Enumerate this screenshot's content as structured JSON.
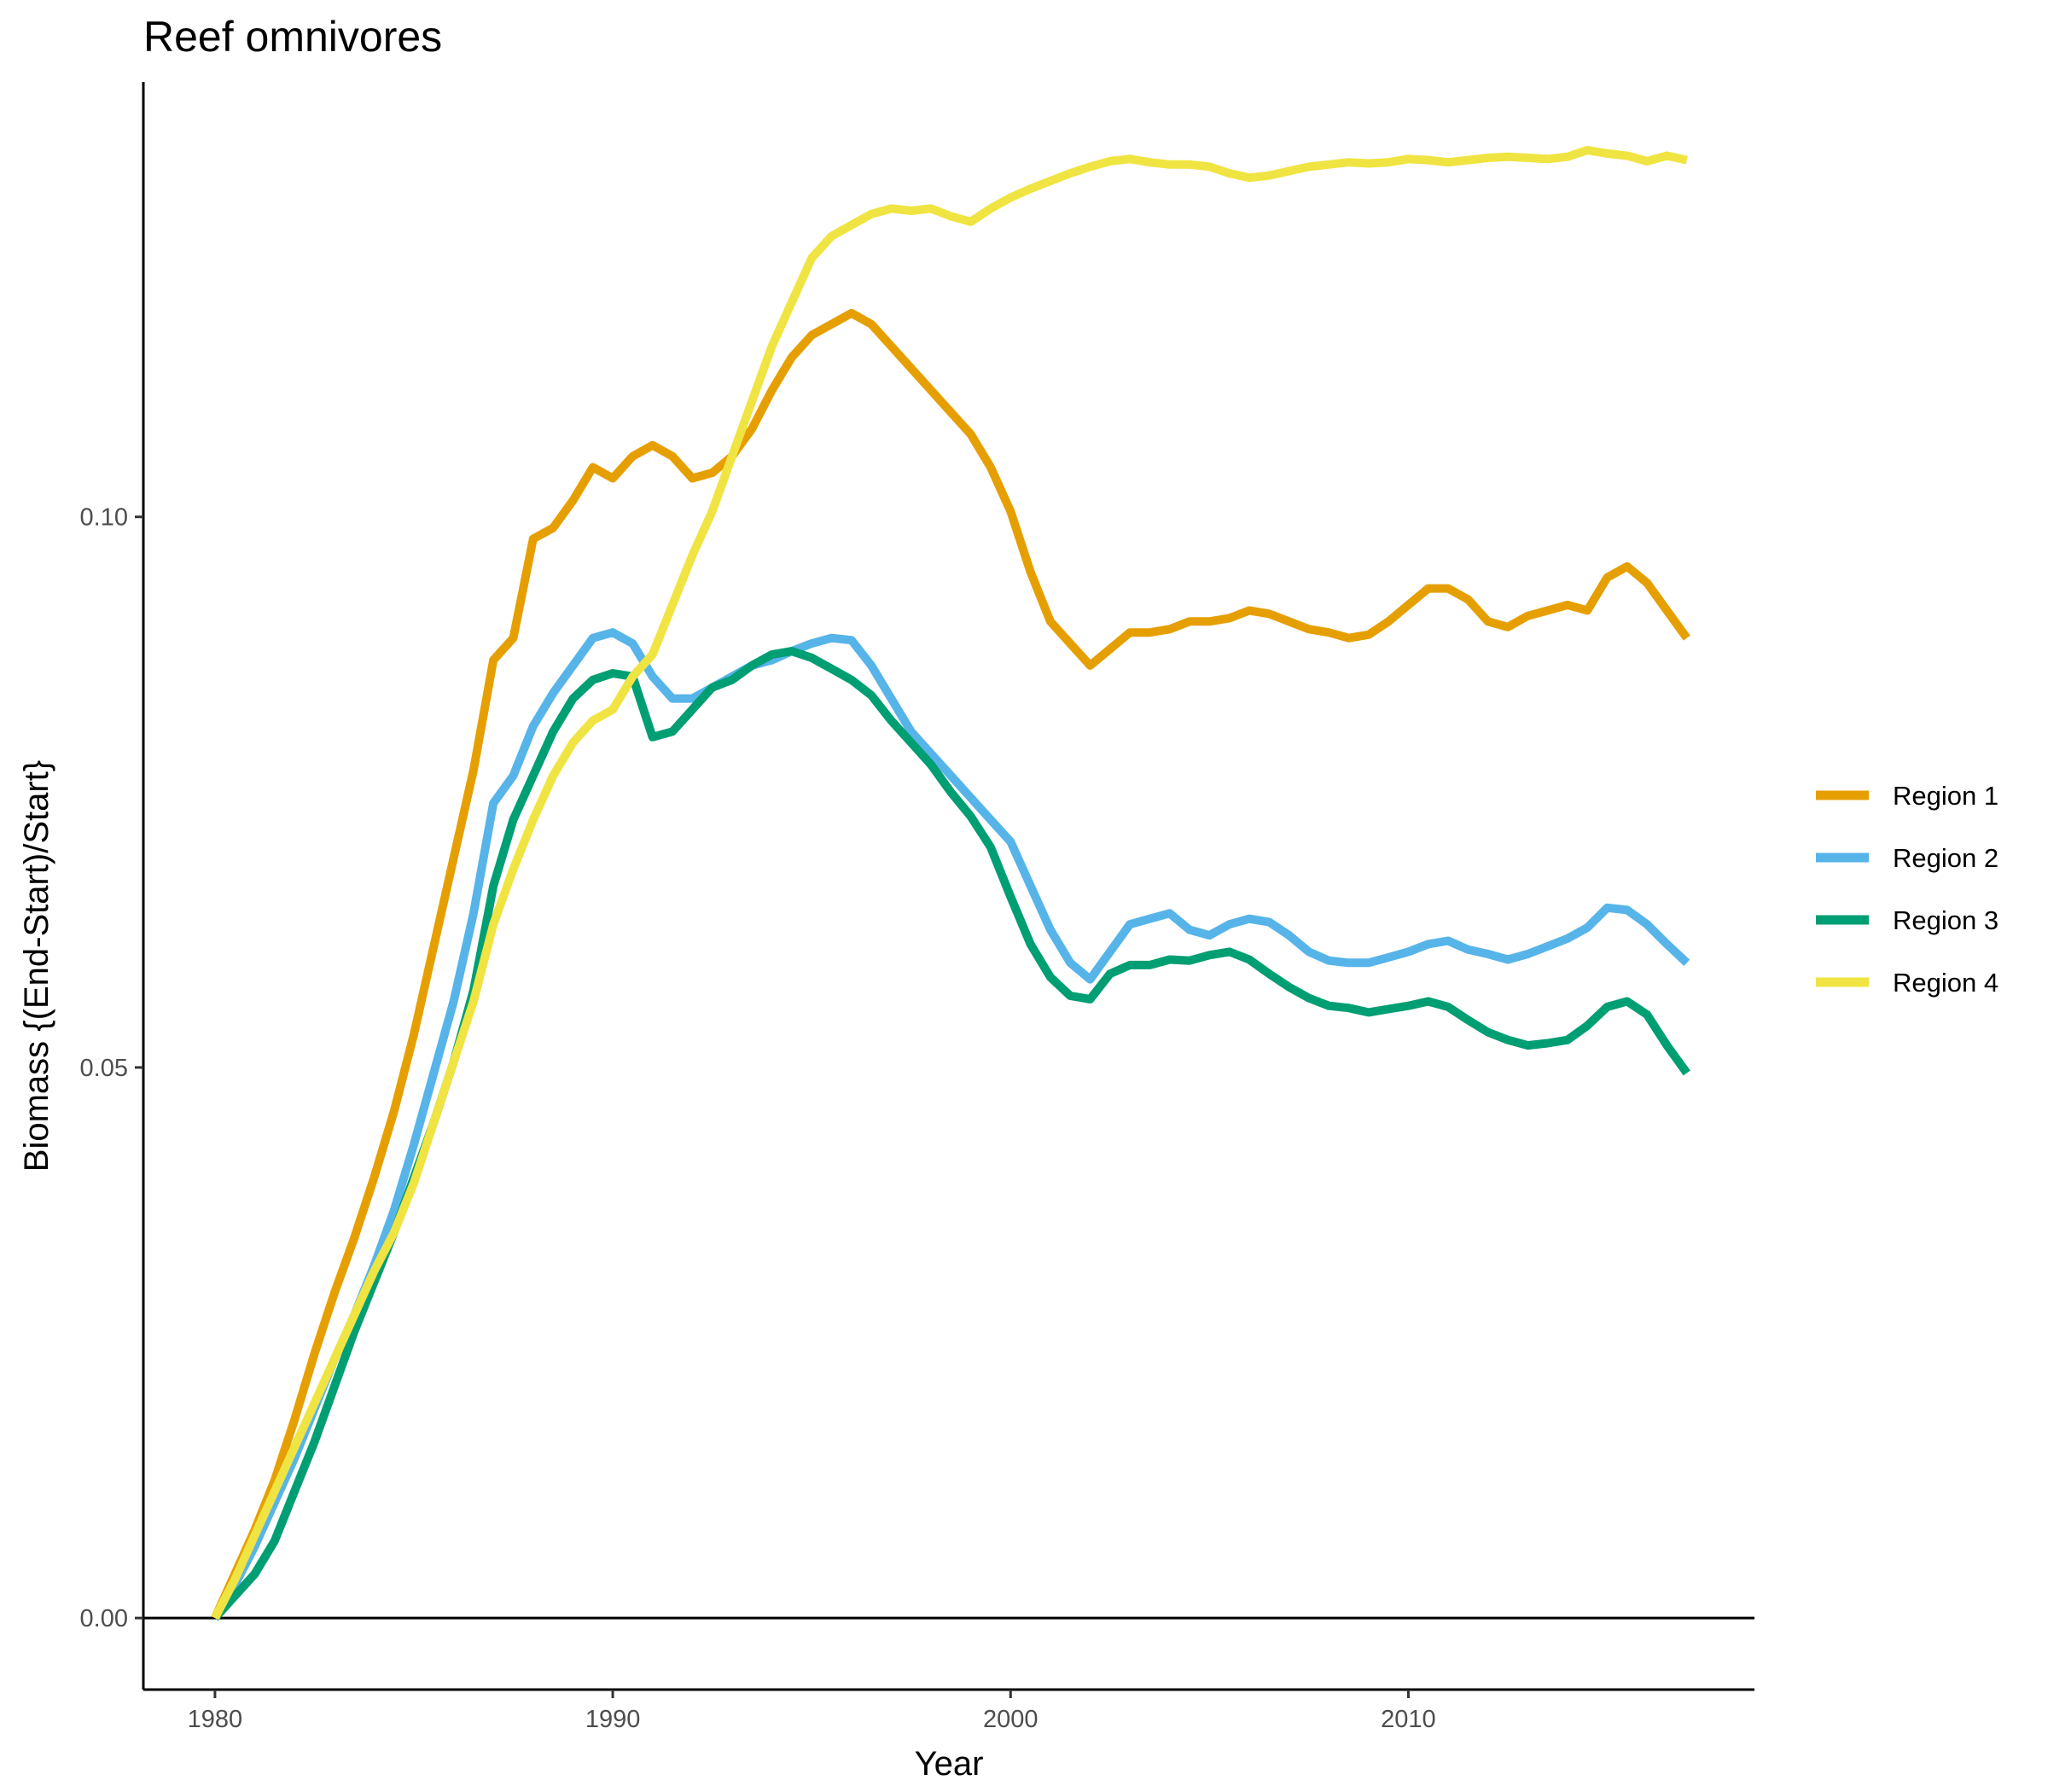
{
  "chart_data": {
    "type": "line",
    "title": "Reef omnivores",
    "xlabel": "Year",
    "ylabel": "Biomass {(End-Start)/Start}",
    "xlim": [
      1978.2,
      2018.7
    ],
    "ylim": [
      -0.0065,
      0.1395
    ],
    "x_ticks": [
      1980,
      1990,
      2000,
      2010
    ],
    "x_tick_labels": [
      "1980",
      "1990",
      "2000",
      "2010"
    ],
    "y_ticks": [
      0.0,
      0.05,
      0.1
    ],
    "y_tick_labels": [
      "0.00",
      "0.05",
      "0.10"
    ],
    "zero_line": true,
    "grid": false,
    "legend_position": "right",
    "series": [
      {
        "name": "Region 1",
        "color": "#E69F00",
        "x": [
          1980,
          1980.5,
          1981,
          1981.5,
          1982,
          1982.5,
          1983,
          1983.5,
          1984,
          1984.5,
          1985,
          1985.5,
          1986,
          1986.5,
          1987,
          1987.5,
          1988,
          1988.5,
          1989,
          1989.5,
          1990,
          1990.5,
          1991,
          1991.5,
          1992,
          1992.5,
          1993,
          1993.5,
          1994,
          1994.5,
          1995,
          1995.5,
          1996,
          1996.5,
          1997,
          1997.5,
          1998,
          1998.5,
          1999,
          1999.5,
          2000,
          2000.5,
          2001,
          2001.5,
          2002,
          2002.5,
          2003,
          2003.5,
          2004,
          2004.5,
          2005,
          2005.5,
          2006,
          2006.5,
          2007,
          2007.5,
          2008,
          2008.5,
          2009,
          2009.5,
          2010,
          2010.5,
          2011,
          2011.5,
          2012,
          2012.5,
          2013,
          2013.5,
          2014,
          2014.5,
          2015,
          2015.5,
          2016,
          2016.5,
          2017
        ],
        "y": [
          0.0,
          0.004,
          0.008,
          0.0125,
          0.018,
          0.024,
          0.0295,
          0.0345,
          0.04,
          0.046,
          0.053,
          0.061,
          0.069,
          0.077,
          0.087,
          0.089,
          0.098,
          0.099,
          0.1015,
          0.1045,
          0.1035,
          0.1055,
          0.1065,
          0.1055,
          0.1035,
          0.104,
          0.1055,
          0.108,
          0.1115,
          0.1145,
          0.1165,
          0.1175,
          0.1185,
          0.1175,
          0.1155,
          0.1135,
          0.1115,
          0.1095,
          0.1075,
          0.1045,
          0.1005,
          0.095,
          0.0905,
          0.0885,
          0.0865,
          0.088,
          0.0895,
          0.0895,
          0.0898,
          0.0905,
          0.0905,
          0.0908,
          0.0915,
          0.0912,
          0.0905,
          0.0898,
          0.0895,
          0.089,
          0.0893,
          0.0905,
          0.092,
          0.0935,
          0.0935,
          0.0925,
          0.0905,
          0.09,
          0.091,
          0.0915,
          0.092,
          0.0915,
          0.0945,
          0.0955,
          0.094,
          0.0915,
          0.089
        ]
      },
      {
        "name": "Region 2",
        "color": "#56B4E9",
        "x": [
          1980,
          1980.5,
          1981,
          1981.5,
          1982,
          1982.5,
          1983,
          1983.5,
          1984,
          1984.5,
          1985,
          1985.5,
          1986,
          1986.5,
          1987,
          1987.5,
          1988,
          1988.5,
          1989,
          1989.5,
          1990,
          1990.5,
          1991,
          1991.5,
          1992,
          1992.5,
          1993,
          1993.5,
          1994,
          1994.5,
          1995,
          1995.5,
          1996,
          1996.5,
          1997,
          1997.5,
          1998,
          1998.5,
          1999,
          1999.5,
          2000,
          2000.5,
          2001,
          2001.5,
          2002,
          2002.5,
          2003,
          2003.5,
          2004,
          2004.5,
          2005,
          2005.5,
          2006,
          2006.5,
          2007,
          2007.5,
          2008,
          2008.5,
          2009,
          2009.5,
          2010,
          2010.5,
          2011,
          2011.5,
          2012,
          2012.5,
          2013,
          2013.5,
          2014,
          2014.5,
          2015,
          2015.5,
          2016,
          2016.5,
          2017
        ],
        "y": [
          0.0,
          0.003,
          0.0065,
          0.0105,
          0.0145,
          0.019,
          0.0235,
          0.0275,
          0.032,
          0.037,
          0.043,
          0.0495,
          0.056,
          0.064,
          0.074,
          0.0765,
          0.081,
          0.084,
          0.0865,
          0.089,
          0.0895,
          0.0885,
          0.0855,
          0.0835,
          0.0835,
          0.0845,
          0.0855,
          0.0865,
          0.087,
          0.0878,
          0.0885,
          0.089,
          0.0888,
          0.0865,
          0.0835,
          0.0805,
          0.0785,
          0.0765,
          0.0745,
          0.0725,
          0.0705,
          0.0665,
          0.0625,
          0.0595,
          0.058,
          0.0605,
          0.063,
          0.0635,
          0.064,
          0.0625,
          0.062,
          0.063,
          0.0635,
          0.0632,
          0.062,
          0.0605,
          0.0597,
          0.0595,
          0.0595,
          0.06,
          0.0605,
          0.0612,
          0.0615,
          0.0607,
          0.0603,
          0.0598,
          0.0603,
          0.061,
          0.0617,
          0.0627,
          0.0645,
          0.0643,
          0.063,
          0.0612,
          0.0595
        ]
      },
      {
        "name": "Region 3",
        "color": "#009E73",
        "x": [
          1980,
          1980.5,
          1981,
          1981.5,
          1982,
          1982.5,
          1983,
          1983.5,
          1984,
          1984.5,
          1985,
          1985.5,
          1986,
          1986.5,
          1987,
          1987.5,
          1988,
          1988.5,
          1989,
          1989.5,
          1990,
          1990.5,
          1991,
          1991.5,
          1992,
          1992.5,
          1993,
          1993.5,
          1994,
          1994.5,
          1995,
          1995.5,
          1996,
          1996.5,
          1997,
          1997.5,
          1998,
          1998.5,
          1999,
          1999.5,
          2000,
          2000.5,
          2001,
          2001.5,
          2002,
          2002.5,
          2003,
          2003.5,
          2004,
          2004.5,
          2005,
          2005.5,
          2006,
          2006.5,
          2007,
          2007.5,
          2008,
          2008.5,
          2009,
          2009.5,
          2010,
          2010.5,
          2011,
          2011.5,
          2012,
          2012.5,
          2013,
          2013.5,
          2014,
          2014.5,
          2015,
          2015.5,
          2016,
          2016.5,
          2017
        ],
        "y": [
          0.0,
          0.002,
          0.004,
          0.007,
          0.0115,
          0.016,
          0.021,
          0.026,
          0.0305,
          0.035,
          0.04,
          0.045,
          0.0505,
          0.057,
          0.0665,
          0.0725,
          0.0765,
          0.0805,
          0.0835,
          0.0852,
          0.0858,
          0.0855,
          0.08,
          0.0805,
          0.0825,
          0.0845,
          0.0852,
          0.0865,
          0.0875,
          0.0878,
          0.0872,
          0.0862,
          0.0852,
          0.0838,
          0.0815,
          0.0795,
          0.0775,
          0.075,
          0.0728,
          0.07,
          0.0655,
          0.0612,
          0.0582,
          0.0565,
          0.0562,
          0.0585,
          0.0593,
          0.0593,
          0.0598,
          0.0597,
          0.0602,
          0.0605,
          0.0598,
          0.0585,
          0.0573,
          0.0563,
          0.0556,
          0.0554,
          0.055,
          0.0553,
          0.0556,
          0.056,
          0.0555,
          0.0543,
          0.0532,
          0.0525,
          0.052,
          0.0522,
          0.0525,
          0.0538,
          0.0555,
          0.056,
          0.0548,
          0.052,
          0.0495
        ]
      },
      {
        "name": "Region 4",
        "color": "#F0E442",
        "x": [
          1980,
          1980.5,
          1981,
          1981.5,
          1982,
          1982.5,
          1983,
          1983.5,
          1984,
          1984.5,
          1985,
          1985.5,
          1986,
          1986.5,
          1987,
          1987.5,
          1988,
          1988.5,
          1989,
          1989.5,
          1990,
          1990.5,
          1991,
          1991.5,
          1992,
          1992.5,
          1993,
          1993.5,
          1994,
          1994.5,
          1995,
          1995.5,
          1996,
          1996.5,
          1997,
          1997.5,
          1998,
          1998.5,
          1999,
          1999.5,
          2000,
          2000.5,
          2001,
          2001.5,
          2002,
          2002.5,
          2003,
          2003.5,
          2004,
          2004.5,
          2005,
          2005.5,
          2006,
          2006.5,
          2007,
          2007.5,
          2008,
          2008.5,
          2009,
          2009.5,
          2010,
          2010.5,
          2011,
          2011.5,
          2012,
          2012.5,
          2013,
          2013.5,
          2014,
          2014.5,
          2015,
          2015.5,
          2016,
          2016.5,
          2017
        ],
        "y": [
          0.0,
          0.0035,
          0.0075,
          0.0115,
          0.0155,
          0.0195,
          0.0235,
          0.0275,
          0.0315,
          0.035,
          0.0395,
          0.045,
          0.0505,
          0.056,
          0.063,
          0.068,
          0.0725,
          0.0765,
          0.0795,
          0.0815,
          0.0825,
          0.0855,
          0.0875,
          0.092,
          0.0965,
          0.1005,
          0.1055,
          0.1105,
          0.1155,
          0.1195,
          0.1235,
          0.1255,
          0.1265,
          0.1275,
          0.128,
          0.1278,
          0.128,
          0.1273,
          0.1268,
          0.128,
          0.129,
          0.1298,
          0.1305,
          0.1312,
          0.1318,
          0.1323,
          0.1325,
          0.1322,
          0.132,
          0.132,
          0.1318,
          0.1312,
          0.1308,
          0.131,
          0.1314,
          0.1318,
          0.132,
          0.1322,
          0.1321,
          0.1322,
          0.1325,
          0.1324,
          0.1322,
          0.1324,
          0.1326,
          0.1327,
          0.1326,
          0.1325,
          0.1327,
          0.1333,
          0.133,
          0.1328,
          0.1323,
          0.1328,
          0.1324
        ]
      }
    ]
  }
}
